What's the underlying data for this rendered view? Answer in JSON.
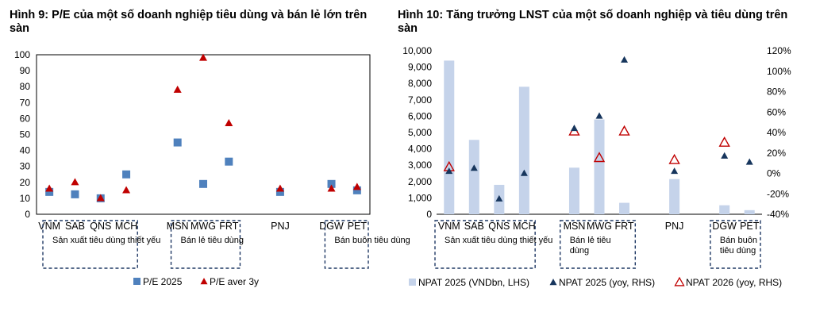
{
  "chart_data": [
    {
      "type": "scatter",
      "title": "Hình 9: P/E của một số doanh nghiệp tiêu dùng và bán lẻ lớn trên sàn",
      "categories": [
        "VNM",
        "SAB",
        "QNS",
        "MCH",
        "",
        "MSN",
        "MWG",
        "FRT",
        "",
        "PNJ",
        "",
        "DGW",
        "PET"
      ],
      "series": [
        {
          "name": "P/E 2025",
          "marker": "square",
          "color": "#4f81bd",
          "values": [
            14,
            12.5,
            10,
            25,
            null,
            45,
            19,
            33,
            null,
            14,
            null,
            19,
            15
          ]
        },
        {
          "name": "P/E aver 3y",
          "marker": "triangle",
          "color": "#c00000",
          "values": [
            16,
            20,
            10,
            15,
            null,
            78,
            98,
            57,
            null,
            16,
            null,
            16,
            17
          ]
        }
      ],
      "ylim": [
        0,
        100
      ],
      "yticks": [
        0,
        10,
        20,
        30,
        40,
        50,
        60,
        70,
        80,
        90,
        100
      ],
      "groups": [
        {
          "label": "Sản xuất tiêu dùng thiết yếu",
          "from": 0,
          "to": 3
        },
        {
          "label": "Bán lẻ tiêu dùng",
          "from": 5,
          "to": 7
        },
        {
          "label": "Bán buôn tiêu dùng",
          "from": 11,
          "to": 12
        }
      ],
      "legend_position": "bottom",
      "grid": false
    },
    {
      "type": "bar+scatter",
      "title": "Hình 10: Tăng trưởng LNST của một số doanh nghiệp và tiêu dùng trên sàn",
      "categories": [
        "VNM",
        "SAB",
        "QNS",
        "MCH",
        "",
        "MSN",
        "MWG",
        "FRT",
        "",
        "PNJ",
        "",
        "DGW",
        "PET"
      ],
      "series": [
        {
          "name": "NPAT 2025 (VNDbn, LHS)",
          "type": "bar",
          "axis": "left",
          "color": "#c5d3ea",
          "values": [
            9400,
            4550,
            1800,
            7800,
            null,
            2850,
            5800,
            700,
            null,
            2150,
            null,
            550,
            250
          ]
        },
        {
          "name": "NPAT 2025 (yoy, RHS)",
          "type": "scatter",
          "marker": "triangle",
          "axis": "right",
          "color": "#17365d",
          "values": [
            0.02,
            0.05,
            -0.25,
            0.0,
            null,
            0.44,
            0.56,
            1.11,
            null,
            0.02,
            null,
            0.17,
            0.11
          ]
        },
        {
          "name": "NPAT 2026 (yoy, RHS)",
          "type": "scatter",
          "marker": "triangle-open",
          "axis": "right",
          "color": "#c00000",
          "values": [
            0.06,
            null,
            null,
            null,
            null,
            0.41,
            0.15,
            0.41,
            null,
            0.13,
            null,
            0.3,
            null
          ]
        }
      ],
      "ylim_left": [
        0,
        10000
      ],
      "yticks_left": [
        "0",
        "1,000",
        "2,000",
        "3,000",
        "4,000",
        "5,000",
        "6,000",
        "7,000",
        "8,000",
        "9,000",
        "10,000"
      ],
      "ylim_right": [
        -0.4,
        1.2
      ],
      "yticks_right": [
        "-40%",
        "-20%",
        "0%",
        "20%",
        "40%",
        "60%",
        "80%",
        "100%",
        "120%"
      ],
      "groups": [
        {
          "label": "Sản xuất tiêu dùng thiết yếu",
          "from": 0,
          "to": 3
        },
        {
          "label": "Bán lẻ tiêu dùng",
          "from": 5,
          "to": 7
        },
        {
          "label": "Bán buôn tiêu dùng",
          "from": 11,
          "to": 12
        }
      ],
      "legend_position": "bottom",
      "grid": false
    }
  ]
}
